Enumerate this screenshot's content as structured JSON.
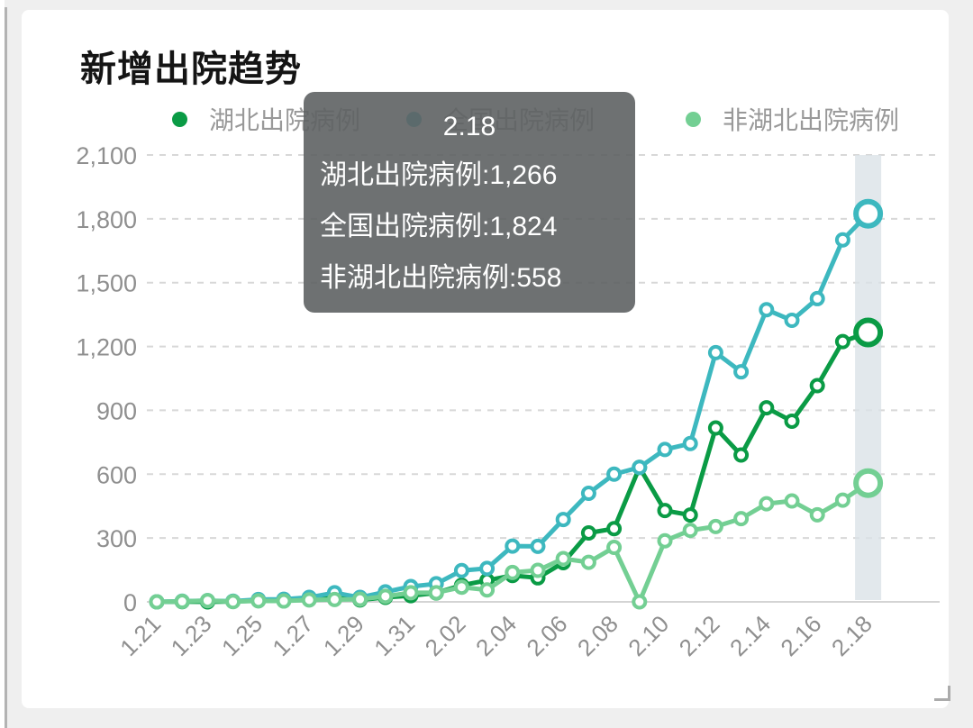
{
  "page": {
    "title": "新增出院趋势"
  },
  "legend": {
    "items": [
      {
        "name": "hubei",
        "label": "湖北出院病例",
        "color": "#0a9b45"
      },
      {
        "name": "national",
        "label": "全国出院病例",
        "color": "#3db8bf"
      },
      {
        "name": "non-hubei",
        "label": "非湖北出院病例",
        "color": "#73cf93"
      }
    ]
  },
  "tooltip": {
    "date": "2.18",
    "lines": [
      {
        "label": "湖北出院病例",
        "value": "1,266"
      },
      {
        "label": "全国出院病例",
        "value": "1,824"
      },
      {
        "label": "非湖北出院病例",
        "value": "558"
      }
    ]
  },
  "chart_data": {
    "type": "line",
    "title": "新增出院趋势",
    "x": [
      "1.21",
      "1.22",
      "1.23",
      "1.24",
      "1.25",
      "1.26",
      "1.27",
      "1.28",
      "1.29",
      "1.30",
      "1.31",
      "2.01",
      "2.02",
      "2.03",
      "2.04",
      "2.05",
      "2.06",
      "2.07",
      "2.08",
      "2.09",
      "2.10",
      "2.11",
      "2.12",
      "2.13",
      "2.14",
      "2.15",
      "2.16",
      "2.17",
      "2.18"
    ],
    "x_tick_labels": [
      "1.21",
      "1.23",
      "1.25",
      "1.27",
      "1.29",
      "1.31",
      "2.02",
      "2.04",
      "2.06",
      "2.08",
      "2.10",
      "2.12",
      "2.14",
      "2.16",
      "2.18"
    ],
    "series": [
      {
        "name": "湖北出院病例",
        "color": "#0a9b45",
        "values": [
          0,
          1,
          0,
          2,
          6,
          8,
          12,
          32,
          9,
          21,
          29,
          42,
          78,
          101,
          124,
          113,
          184,
          324,
          344,
          632,
          429,
          408,
          817,
          690,
          912,
          849,
          1016,
          1223,
          1266
        ]
      },
      {
        "name": "全国出院病例",
        "color": "#3db8bf",
        "values": [
          0,
          3,
          6,
          3,
          11,
          12,
          21,
          43,
          21,
          47,
          72,
          85,
          147,
          157,
          262,
          261,
          387,
          510,
          600,
          632,
          716,
          744,
          1171,
          1081,
          1373,
          1323,
          1425,
          1701,
          1824
        ]
      },
      {
        "name": "非湖北出院病例",
        "color": "#73cf93",
        "values": [
          0,
          2,
          6,
          1,
          5,
          4,
          9,
          11,
          12,
          26,
          43,
          43,
          69,
          56,
          138,
          148,
          203,
          186,
          256,
          0,
          287,
          336,
          354,
          391,
          461,
          474,
          409,
          478,
          558
        ]
      }
    ],
    "ylim": [
      0,
      2100
    ],
    "yticks": [
      {
        "value": 0,
        "label": "0"
      },
      {
        "value": 300,
        "label": "300"
      },
      {
        "value": 600,
        "label": "600"
      },
      {
        "value": 900,
        "label": "900"
      },
      {
        "value": 1200,
        "label": "1,200"
      },
      {
        "value": 1500,
        "label": "1,500"
      },
      {
        "value": 1800,
        "label": "1,800"
      },
      {
        "value": 2100,
        "label": "2,100"
      }
    ],
    "grid": "horizontal-dashed",
    "legend_position": "top",
    "highlight_x": "2.18",
    "highlight_band_color": "#dbe2e7",
    "marker": "hollow-circle",
    "emphasis_last_point": true
  }
}
